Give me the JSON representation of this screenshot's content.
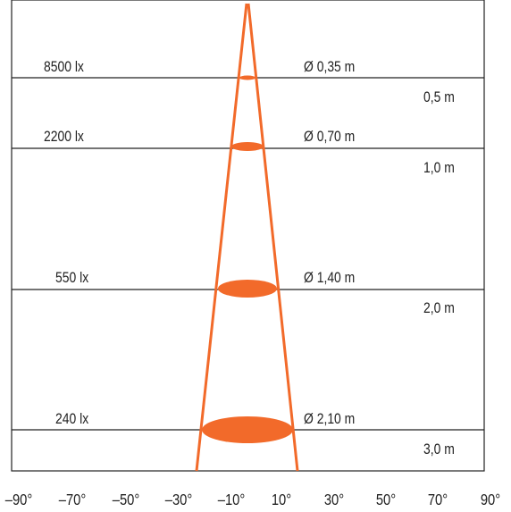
{
  "colors": {
    "beam": "#f26a2a",
    "line": "#222222",
    "background": "#ffffff"
  },
  "levels": [
    {
      "lux": "8500 lx",
      "diameter": "Ø 0,35 m",
      "distance": "0,5 m"
    },
    {
      "lux": "2200 lx",
      "diameter": "Ø 0,70 m",
      "distance": "1,0 m"
    },
    {
      "lux": "550 lx",
      "diameter": "Ø 1,40 m",
      "distance": "2,0 m"
    },
    {
      "lux": "240 lx",
      "diameter": "Ø 2,10 m",
      "distance": "3,0 m"
    }
  ],
  "angle_ticks": [
    "–90°",
    "–70°",
    "–50°",
    "–30°",
    "–10°",
    "10°",
    "30°",
    "50°",
    "70°",
    "90°"
  ]
}
